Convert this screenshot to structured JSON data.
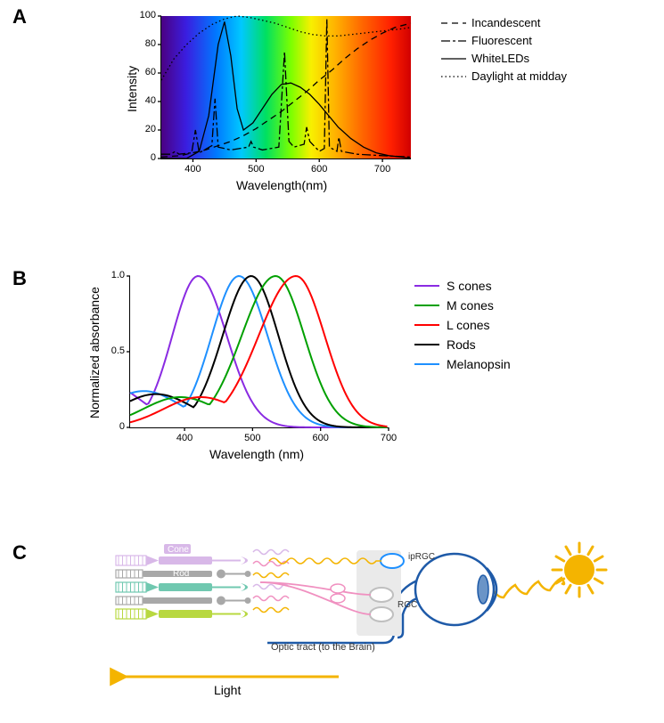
{
  "panels": {
    "A": {
      "label": "A"
    },
    "B": {
      "label": "B"
    },
    "C": {
      "label": "C"
    }
  },
  "chartA": {
    "type": "line",
    "xlabel": "Wavelength(nm)",
    "ylabel": "Intensity",
    "xlim": [
      350,
      745
    ],
    "ylim": [
      0,
      100
    ],
    "xtick_step": 100,
    "xtick_start": 400,
    "xtick_end": 700,
    "ytick_step": 20,
    "label_fontsize": 14,
    "tick_fontsize": 11,
    "line_color": "#000000",
    "line_width": 1.3,
    "spectrum_gradient": [
      {
        "stop": 0.0,
        "color": "#4b0082"
      },
      {
        "stop": 0.1,
        "color": "#3a1ee0"
      },
      {
        "stop": 0.22,
        "color": "#0078ff"
      },
      {
        "stop": 0.32,
        "color": "#00c8ff"
      },
      {
        "stop": 0.42,
        "color": "#00e060"
      },
      {
        "stop": 0.52,
        "color": "#7cff00"
      },
      {
        "stop": 0.6,
        "color": "#f8f000"
      },
      {
        "stop": 0.7,
        "color": "#ffb000"
      },
      {
        "stop": 0.8,
        "color": "#ff6a00"
      },
      {
        "stop": 0.92,
        "color": "#ff2000"
      },
      {
        "stop": 1.0,
        "color": "#d00000"
      }
    ],
    "series": [
      {
        "name": "Incandescent",
        "dash": "7,5",
        "points": [
          [
            350,
            1
          ],
          [
            380,
            2
          ],
          [
            400,
            4
          ],
          [
            420,
            6
          ],
          [
            440,
            9
          ],
          [
            460,
            12
          ],
          [
            480,
            16
          ],
          [
            500,
            21
          ],
          [
            520,
            27
          ],
          [
            540,
            33
          ],
          [
            560,
            40
          ],
          [
            580,
            47
          ],
          [
            600,
            55
          ],
          [
            620,
            62
          ],
          [
            640,
            70
          ],
          [
            660,
            77
          ],
          [
            680,
            83
          ],
          [
            700,
            88
          ],
          [
            720,
            92
          ],
          [
            745,
            95
          ]
        ]
      },
      {
        "name": "Fluorescent",
        "dash": "10,3,3,3",
        "points": [
          [
            350,
            3
          ],
          [
            365,
            3
          ],
          [
            372,
            5
          ],
          [
            378,
            3
          ],
          [
            398,
            4
          ],
          [
            404,
            20
          ],
          [
            410,
            4
          ],
          [
            430,
            9
          ],
          [
            435,
            42
          ],
          [
            440,
            8
          ],
          [
            460,
            6
          ],
          [
            488,
            8
          ],
          [
            492,
            12
          ],
          [
            496,
            8
          ],
          [
            510,
            6
          ],
          [
            536,
            8
          ],
          [
            545,
            75
          ],
          [
            552,
            12
          ],
          [
            560,
            8
          ],
          [
            576,
            10
          ],
          [
            580,
            22
          ],
          [
            585,
            12
          ],
          [
            600,
            5
          ],
          [
            608,
            7
          ],
          [
            612,
            98
          ],
          [
            616,
            8
          ],
          [
            628,
            5
          ],
          [
            631,
            15
          ],
          [
            635,
            5
          ],
          [
            660,
            3
          ],
          [
            700,
            2
          ],
          [
            745,
            1
          ]
        ]
      },
      {
        "name": "WhiteLEDs",
        "dash": "none",
        "points": [
          [
            350,
            0
          ],
          [
            390,
            0
          ],
          [
            410,
            5
          ],
          [
            425,
            30
          ],
          [
            440,
            80
          ],
          [
            450,
            96
          ],
          [
            460,
            72
          ],
          [
            470,
            35
          ],
          [
            480,
            20
          ],
          [
            495,
            25
          ],
          [
            510,
            35
          ],
          [
            525,
            45
          ],
          [
            540,
            52
          ],
          [
            555,
            53
          ],
          [
            570,
            50
          ],
          [
            585,
            45
          ],
          [
            600,
            38
          ],
          [
            615,
            30
          ],
          [
            630,
            22
          ],
          [
            650,
            14
          ],
          [
            670,
            8
          ],
          [
            690,
            4
          ],
          [
            710,
            2
          ],
          [
            730,
            1
          ],
          [
            745,
            0
          ]
        ]
      },
      {
        "name": "Daylight at midday",
        "dash": "1.5,3",
        "points": [
          [
            350,
            55
          ],
          [
            370,
            70
          ],
          [
            390,
            80
          ],
          [
            410,
            88
          ],
          [
            430,
            94
          ],
          [
            450,
            98
          ],
          [
            470,
            100
          ],
          [
            490,
            99
          ],
          [
            510,
            97
          ],
          [
            530,
            95
          ],
          [
            550,
            92
          ],
          [
            570,
            89
          ],
          [
            590,
            87
          ],
          [
            610,
            86
          ],
          [
            630,
            86
          ],
          [
            650,
            87
          ],
          [
            670,
            88
          ],
          [
            690,
            89
          ],
          [
            710,
            90
          ],
          [
            730,
            91
          ],
          [
            745,
            92
          ]
        ]
      }
    ],
    "legend": [
      {
        "label": "Incandescent",
        "dash": "7,5"
      },
      {
        "label": "Fluorescent",
        "dash": "10,3,3,3"
      },
      {
        "label": "WhiteLEDs",
        "dash": "none"
      },
      {
        "label": "Daylight at midday",
        "dash": "1.5,3"
      }
    ]
  },
  "chartB": {
    "type": "line",
    "xlabel": "Wavelength (nm)",
    "ylabel": "Normalized absorbance",
    "xlim": [
      320,
      700
    ],
    "ylim": [
      0,
      1.0
    ],
    "xticks": [
      400,
      500,
      600,
      700
    ],
    "yticks": [
      0,
      0.5,
      1.0
    ],
    "label_fontsize": 14,
    "tick_fontsize": 11,
    "line_width": 2.0,
    "series": [
      {
        "name": "S cones",
        "color": "#8a2be2",
        "peak": 420,
        "sigma_l": 38,
        "sigma_r": 42,
        "tail_l": 0.3
      },
      {
        "name": "Melanopsin",
        "color": "#1e90ff",
        "peak": 480,
        "sigma_l": 40,
        "sigma_r": 42,
        "tail_l": 0.24
      },
      {
        "name": "Rods",
        "color": "#000000",
        "peak": 498,
        "sigma_l": 42,
        "sigma_r": 40,
        "tail_l": 0.22
      },
      {
        "name": "M cones",
        "color": "#00a000",
        "peak": 534,
        "sigma_l": 50,
        "sigma_r": 42,
        "tail_l": 0.2
      },
      {
        "name": "L cones",
        "color": "#ff0000",
        "peak": 564,
        "sigma_l": 55,
        "sigma_r": 42,
        "tail_l": 0.2
      }
    ],
    "legend_order": [
      "S cones",
      "M cones",
      "L cones",
      "Rods",
      "Melanopsin"
    ]
  },
  "panelC": {
    "type": "infographic",
    "arrow_label": "Light",
    "optic_tract_label": "Optic tract (to the Brain)",
    "arrow_color": "#f4b400",
    "arrow_fontsize": 14,
    "sun_color": "#f4b400",
    "eye_outline_color": "#1e5aa8",
    "eye_iris_color": "#6a94c7",
    "eye_fill": "#ffffff",
    "sclera_gray": "#d5d5d5",
    "rgc_box_fill": "#eaeaea",
    "iprgc_color": "#1e90ff",
    "rgc_gray": "#bfbfbf",
    "labels": {
      "iprgc": "ipRGC",
      "rgc": "RGC",
      "cone": "Cone",
      "rod": "Rod"
    },
    "label_fontsize": 10,
    "photoreceptor_rows": [
      {
        "type": "cone",
        "color": "#d8b8e8"
      },
      {
        "type": "rod",
        "color": "#a8a8a8"
      },
      {
        "type": "cone",
        "color": "#70c8b0"
      },
      {
        "type": "rod",
        "color": "#a8a8a8"
      },
      {
        "type": "cone",
        "color": "#b8d840"
      }
    ],
    "bipolar_colors": [
      "#d8b8e8",
      "#f090c0",
      "#f4b400"
    ],
    "ganglion_line_color": "#f090c0"
  }
}
